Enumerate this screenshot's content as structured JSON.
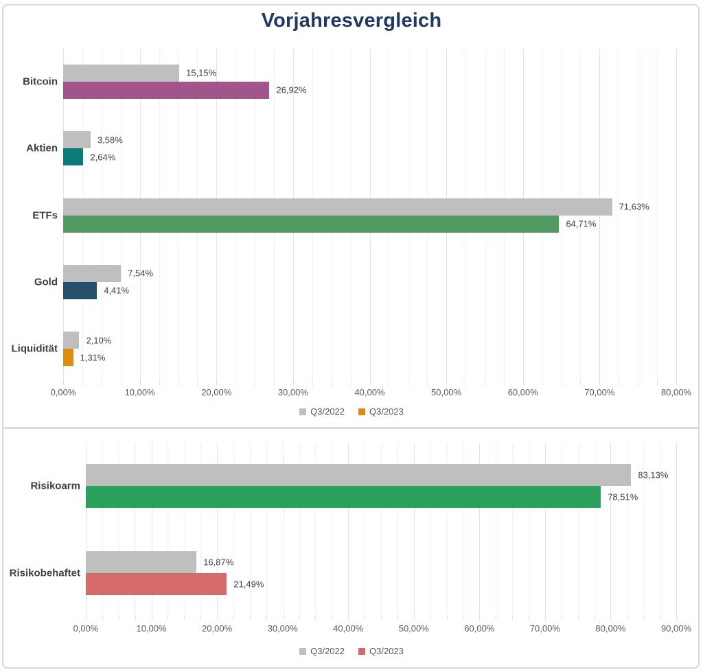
{
  "page_title": "Vorjahresvergleich",
  "colors": {
    "title": "#1F3864",
    "axis_text": "#595959",
    "value_text": "#404040",
    "category_text": "#404040",
    "grid_minor": "#F2F2F2",
    "grid_major": "#E2E2E2",
    "frame_border": "#D9D9D9",
    "series_gray": "#BFBFBF"
  },
  "chart_data": [
    {
      "type": "bar",
      "orientation": "horizontal",
      "title": "Vorjahresvergleich",
      "categories": [
        "Bitcoin",
        "Aktien",
        "ETFs",
        "Gold",
        "Liquidität"
      ],
      "series": [
        {
          "name": "Q3/2022",
          "color": "#BFBFBF",
          "values": [
            15.15,
            3.58,
            71.63,
            7.54,
            2.1
          ],
          "labels": [
            "15,15%",
            "3,58%",
            "71,63%",
            "7,54%",
            "2,10%"
          ]
        },
        {
          "name": "Q3/2023",
          "colors": [
            "#A2558A",
            "#0B7B78",
            "#529A62",
            "#24506B",
            "#E08C10"
          ],
          "values": [
            26.92,
            2.64,
            64.71,
            4.41,
            1.31
          ],
          "labels": [
            "26,92%",
            "2,64%",
            "64,71%",
            "4,41%",
            "1,31%"
          ]
        }
      ],
      "xlim": [
        0,
        80
      ],
      "major_step": 10,
      "minor_step": 2.5,
      "x_ticks": [
        "0,00%",
        "10,00%",
        "20,00%",
        "30,00%",
        "40,00%",
        "50,00%",
        "60,00%",
        "70,00%",
        "80,00%"
      ],
      "grid": true,
      "legend_position": "bottom",
      "legend": [
        {
          "label": "Q3/2022",
          "color": "#BFBFBF"
        },
        {
          "label": "Q3/2023",
          "color": "#E08C10"
        }
      ]
    },
    {
      "type": "bar",
      "orientation": "horizontal",
      "title": "",
      "categories": [
        "Risikoarm",
        "Risikobehaftet"
      ],
      "series": [
        {
          "name": "Q3/2022",
          "color": "#BFBFBF",
          "values": [
            83.13,
            16.87
          ],
          "labels": [
            "83,13%",
            "16,87%"
          ]
        },
        {
          "name": "Q3/2023",
          "colors": [
            "#2BA15E",
            "#D46A6A"
          ],
          "values": [
            78.51,
            21.49
          ],
          "labels": [
            "78,51%",
            "21,49%"
          ]
        }
      ],
      "xlim": [
        0,
        90
      ],
      "major_step": 10,
      "minor_step": 2.5,
      "x_ticks": [
        "0,00%",
        "10,00%",
        "20,00%",
        "30,00%",
        "40,00%",
        "50,00%",
        "60,00%",
        "70,00%",
        "80,00%",
        "90,00%"
      ],
      "grid": true,
      "legend_position": "bottom",
      "legend": [
        {
          "label": "Q3/2022",
          "color": "#BFBFBF"
        },
        {
          "label": "Q3/2023",
          "color": "#D46A6A"
        }
      ]
    }
  ]
}
